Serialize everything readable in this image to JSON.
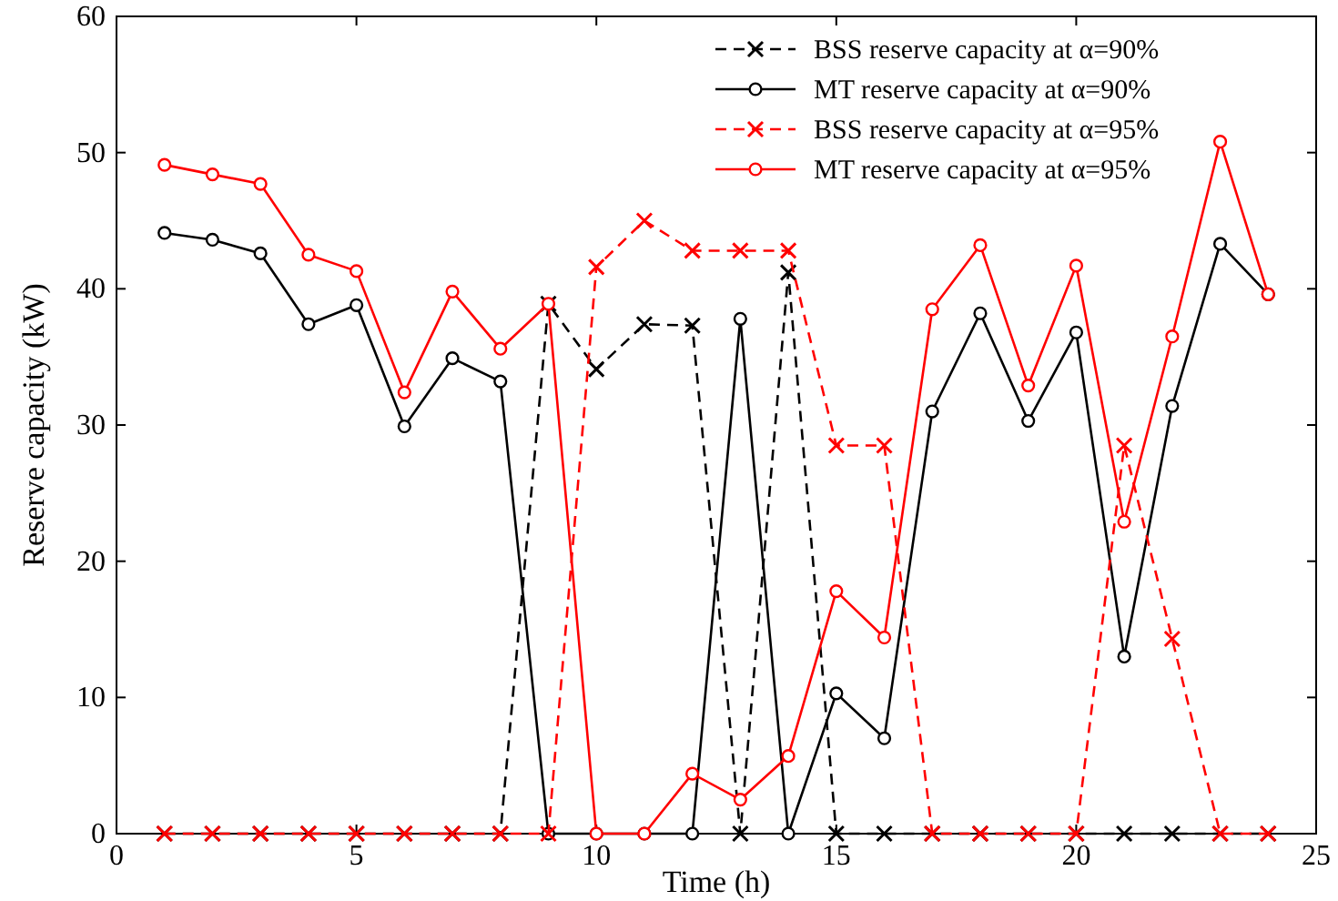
{
  "chart_data": {
    "type": "line",
    "xlabel": "Time (h)",
    "ylabel": "Reserve capacity (kW)",
    "x": [
      1,
      2,
      3,
      4,
      5,
      6,
      7,
      8,
      9,
      10,
      11,
      12,
      13,
      14,
      15,
      16,
      17,
      18,
      19,
      20,
      21,
      22,
      23,
      24
    ],
    "xlim": [
      0,
      25
    ],
    "xticks": [
      0,
      5,
      10,
      15,
      20,
      25
    ],
    "ylim": [
      0,
      60
    ],
    "yticks": [
      0,
      10,
      20,
      30,
      40,
      50,
      60
    ],
    "grid": false,
    "legend": "top right",
    "series": [
      {
        "name": "BSS reserve capacity at α=90%",
        "color": "#000000",
        "marker": "cross",
        "line_style": "dashed",
        "values": [
          0,
          0,
          0,
          0,
          0,
          0,
          0,
          0,
          38.9,
          34.1,
          37.4,
          37.3,
          0,
          41.2,
          0,
          0,
          0,
          0,
          0,
          0,
          0,
          0,
          0,
          0
        ]
      },
      {
        "name": "MT reserve capacity at α=90%",
        "color": "#000000",
        "marker": "circle",
        "line_style": "solid",
        "values": [
          44.1,
          43.6,
          42.6,
          37.4,
          38.8,
          29.9,
          34.9,
          33.2,
          0,
          0,
          0,
          0,
          37.8,
          0,
          10.3,
          7.0,
          31.0,
          38.2,
          30.3,
          36.8,
          13.0,
          31.4,
          43.3,
          39.6
        ]
      },
      {
        "name": "BSS reserve capacity at α=95%",
        "color": "#ff0000",
        "marker": "cross",
        "line_style": "dashed",
        "values": [
          0,
          0,
          0,
          0,
          0,
          0,
          0,
          0,
          0,
          41.6,
          45.0,
          42.8,
          42.8,
          42.8,
          28.5,
          28.5,
          0,
          0,
          0,
          0,
          28.5,
          14.3,
          0,
          0
        ]
      },
      {
        "name": "MT reserve capacity at α=95%",
        "color": "#ff0000",
        "marker": "circle",
        "line_style": "solid",
        "values": [
          49.1,
          48.4,
          47.7,
          42.5,
          41.3,
          32.4,
          39.8,
          35.6,
          38.9,
          0,
          0,
          4.4,
          2.5,
          5.7,
          17.8,
          14.4,
          38.5,
          43.2,
          32.9,
          41.7,
          22.9,
          36.5,
          50.8,
          39.6
        ]
      }
    ]
  }
}
